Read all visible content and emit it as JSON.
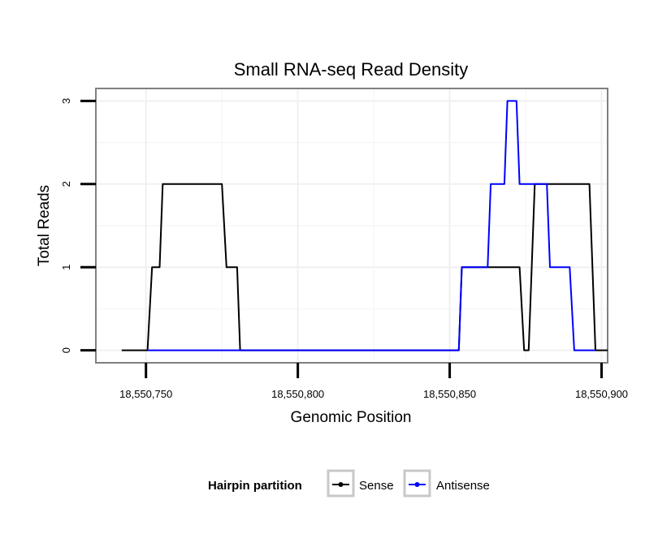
{
  "chart_data": {
    "type": "line",
    "title": "Small RNA-seq Read Density",
    "xlabel": "Genomic Position",
    "ylabel": "Total Reads",
    "xlim": [
      18550733.5,
      18550902
    ],
    "ylim": [
      -0.15,
      3.15
    ],
    "x_ticks": [
      18550750,
      18550800,
      18550850,
      18550900
    ],
    "x_tick_labels": [
      "18,550,750",
      "18,550,800",
      "18,550,850",
      "18,550,900"
    ],
    "y_ticks": [
      0,
      1,
      2,
      3
    ],
    "y_tick_labels": [
      "0",
      "1",
      "2",
      "3"
    ],
    "grid": true,
    "legend": {
      "title": "Hairpin partition",
      "position": "bottom",
      "entries": [
        "Sense",
        "Antisense"
      ]
    },
    "series": [
      {
        "name": "Sense",
        "color": "#000000",
        "points": [
          [
            18550742,
            0
          ],
          [
            18550750.5,
            0
          ],
          [
            18550752,
            1
          ],
          [
            18550754.5,
            1
          ],
          [
            18550755.5,
            2
          ],
          [
            18550775,
            2
          ],
          [
            18550776.5,
            1
          ],
          [
            18550780,
            1
          ],
          [
            18550781,
            0
          ],
          [
            18550853,
            0
          ],
          [
            18550854,
            1
          ],
          [
            18550873,
            1
          ],
          [
            18550874.5,
            0
          ],
          [
            18550876,
            0
          ],
          [
            18550878,
            2
          ],
          [
            18550896,
            2
          ],
          [
            18550898,
            0
          ],
          [
            18550902,
            0
          ]
        ]
      },
      {
        "name": "Antisense",
        "color": "#0000ff",
        "points": [
          [
            18550750.5,
            0
          ],
          [
            18550781,
            0
          ],
          [
            18550853,
            0
          ],
          [
            18550854,
            1
          ],
          [
            18550862.5,
            1
          ],
          [
            18550863.5,
            2
          ],
          [
            18550868,
            2
          ],
          [
            18550869,
            3
          ],
          [
            18550872,
            3
          ],
          [
            18550873,
            2
          ],
          [
            18550882,
            2
          ],
          [
            18550883,
            1
          ],
          [
            18550889.5,
            1
          ],
          [
            18550891,
            0
          ],
          [
            18550898,
            0
          ]
        ]
      }
    ]
  }
}
